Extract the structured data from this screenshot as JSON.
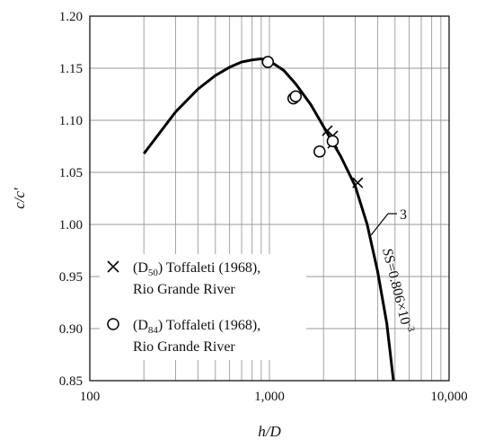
{
  "chart_data": {
    "type": "scatter",
    "x_scale": "log",
    "xlim": [
      100,
      10000
    ],
    "ylim": [
      0.85,
      1.2
    ],
    "xlabel": "h/D",
    "ylabel": "c/c′",
    "x_ticks": [
      "100",
      "1,000",
      "10,000"
    ],
    "y_ticks": [
      "0.85",
      "0.90",
      "0.95",
      "1.00",
      "1.05",
      "1.10",
      "1.15",
      "1.20"
    ],
    "grid": true,
    "series": [
      {
        "name": "(D50) Toffaleti (1968), Rio Grande River",
        "legend_line1_sub_prefix": "(D",
        "legend_line1_sub": "50",
        "legend_line1_rest": ") Toffaleti (1968),",
        "legend_line2": "Rio Grande River",
        "marker": "x",
        "points": [
          {
            "x": 2100,
            "y": 1.09
          },
          {
            "x": 2250,
            "y": 1.085
          },
          {
            "x": 2250,
            "y": 1.078
          },
          {
            "x": 3100,
            "y": 1.04
          }
        ]
      },
      {
        "name": "(D84) Toffaleti (1968), Rio Grande River",
        "legend_line1_sub_prefix": "(D",
        "legend_line1_sub": "84",
        "legend_line1_rest": ") Toffaleti (1968),",
        "legend_line2": "Rio Grande River",
        "marker": "circle",
        "points": [
          {
            "x": 980,
            "y": 1.156
          },
          {
            "x": 1360,
            "y": 1.121
          },
          {
            "x": 1400,
            "y": 1.123
          },
          {
            "x": 1900,
            "y": 1.07
          },
          {
            "x": 2250,
            "y": 1.08
          }
        ]
      }
    ],
    "curve": {
      "label": "3",
      "equation_main": "S=0.806×10",
      "equation_exp": "-3",
      "points": [
        {
          "x": 200,
          "y": 1.068
        },
        {
          "x": 300,
          "y": 1.108
        },
        {
          "x": 400,
          "y": 1.13
        },
        {
          "x": 500,
          "y": 1.143
        },
        {
          "x": 600,
          "y": 1.151
        },
        {
          "x": 700,
          "y": 1.156
        },
        {
          "x": 800,
          "y": 1.158
        },
        {
          "x": 900,
          "y": 1.159
        },
        {
          "x": 1000,
          "y": 1.157
        },
        {
          "x": 1200,
          "y": 1.148
        },
        {
          "x": 1400,
          "y": 1.135
        },
        {
          "x": 1700,
          "y": 1.115
        },
        {
          "x": 2000,
          "y": 1.094
        },
        {
          "x": 2500,
          "y": 1.065
        },
        {
          "x": 3000,
          "y": 1.037
        },
        {
          "x": 3500,
          "y": 1.0
        },
        {
          "x": 4000,
          "y": 0.955
        },
        {
          "x": 4500,
          "y": 0.905
        },
        {
          "x": 4900,
          "y": 0.85
        }
      ]
    }
  }
}
